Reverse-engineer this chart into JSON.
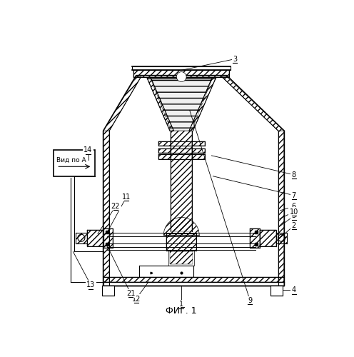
{
  "title": "ФИГ. 1",
  "bg_color": "#ffffff",
  "line_color": "#000000",
  "figsize": [
    4.96,
    5.0
  ],
  "dpi": 100,
  "vid_po_a_text": "Вид по А",
  "labels_info": [
    [
      1,
      0.5,
      0.048,
      0.5,
      0.115
    ],
    [
      2,
      0.91,
      0.335,
      0.865,
      0.295
    ],
    [
      3,
      0.695,
      0.942,
      0.495,
      0.9
    ],
    [
      4,
      0.91,
      0.1,
      0.87,
      0.1
    ],
    [
      5,
      0.91,
      0.37,
      0.855,
      0.33
    ],
    [
      6,
      0.91,
      0.405,
      0.86,
      0.39
    ],
    [
      7,
      0.91,
      0.445,
      0.615,
      0.515
    ],
    [
      8,
      0.91,
      0.52,
      0.61,
      0.59
    ],
    [
      9,
      0.75,
      0.062,
      0.53,
      0.755
    ],
    [
      10,
      0.91,
      0.385,
      0.858,
      0.36
    ],
    [
      11,
      0.3,
      0.44,
      0.228,
      0.308
    ],
    [
      12,
      0.335,
      0.068,
      0.38,
      0.13
    ],
    [
      13,
      0.17,
      0.118,
      0.105,
      0.24
    ],
    [
      14,
      0.16,
      0.61,
      0.16,
      0.575
    ],
    [
      21,
      0.315,
      0.088,
      0.225,
      0.27
    ],
    [
      22,
      0.26,
      0.405,
      0.195,
      0.305
    ]
  ]
}
